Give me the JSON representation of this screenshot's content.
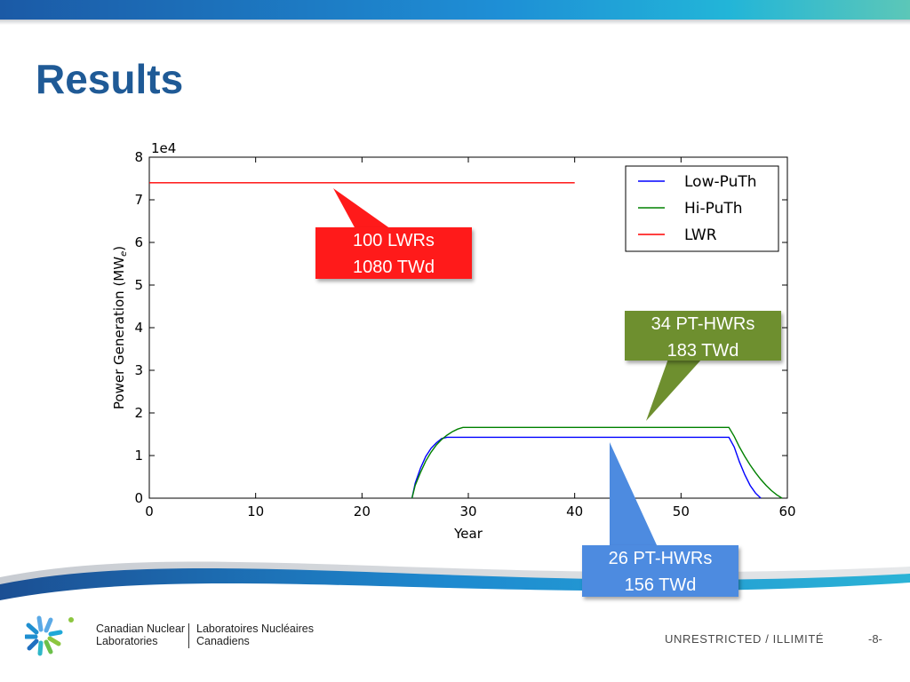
{
  "slide": {
    "title": "Results",
    "footer_classification": "UNRESTRICTED / ILLIMITÉ",
    "page_number": "-8-",
    "org_name_en_line1": "Canadian Nuclear",
    "org_name_en_line2": "Laboratories",
    "org_name_fr_line1": "Laboratoires Nucléaires",
    "org_name_fr_line2": "Canadiens",
    "logo_icon": "cnl-starburst-logo-icon"
  },
  "callouts": {
    "lwr_line1": "100 LWRs",
    "lwr_line2": "1080 TWd",
    "hi_line1": "34 PT-HWRs",
    "hi_line2": "183 TWd",
    "low_line1": "26 PT-HWRs",
    "low_line2": "156 TWd"
  },
  "colors": {
    "title": "#1f5a96",
    "low_puth": "#0000ff",
    "hi_puth": "#008000",
    "lwr": "#ff0000",
    "callout_lwr": "#ff1a1a",
    "callout_hi": "#6e8f2f",
    "callout_low": "#4d8be0"
  },
  "chart_data": {
    "type": "line",
    "xlabel": "Year",
    "ylabel": "Power Generation (MW",
    "ylabel_sub": "e",
    "ylabel_close": ")",
    "y_offset_text": "1e4",
    "xlim": [
      0,
      60
    ],
    "ylim": [
      0,
      8
    ],
    "x_ticks": [
      0,
      10,
      20,
      30,
      40,
      50,
      60
    ],
    "y_ticks": [
      0,
      1,
      2,
      3,
      4,
      5,
      6,
      7,
      8
    ],
    "grid": false,
    "legend_position": "top-right",
    "series": [
      {
        "name": "Low-PuTh",
        "color": "#0000ff",
        "x": [
          24.7,
          25,
          25.5,
          26,
          26.5,
          27,
          27.5,
          28,
          54.5,
          55,
          55.5,
          56,
          56.5,
          57,
          57.5
        ],
        "y": [
          0,
          0.35,
          0.7,
          0.98,
          1.17,
          1.3,
          1.4,
          1.43,
          1.43,
          1.2,
          0.85,
          0.55,
          0.3,
          0.12,
          0
        ]
      },
      {
        "name": "Hi-PuTh",
        "color": "#008000",
        "x": [
          24.7,
          25,
          25.5,
          26,
          26.5,
          27,
          27.5,
          28,
          28.5,
          29,
          29.5,
          54.5,
          55,
          55.5,
          56,
          56.5,
          57,
          57.5,
          58,
          58.5,
          59,
          59.5
        ],
        "y": [
          0,
          0.3,
          0.6,
          0.87,
          1.08,
          1.25,
          1.38,
          1.48,
          1.56,
          1.62,
          1.66,
          1.66,
          1.45,
          1.2,
          0.98,
          0.78,
          0.6,
          0.44,
          0.3,
          0.18,
          0.08,
          0
        ]
      },
      {
        "name": "LWR",
        "color": "#ff0000",
        "x": [
          0,
          40
        ],
        "y": [
          7.4,
          7.4
        ]
      }
    ]
  }
}
